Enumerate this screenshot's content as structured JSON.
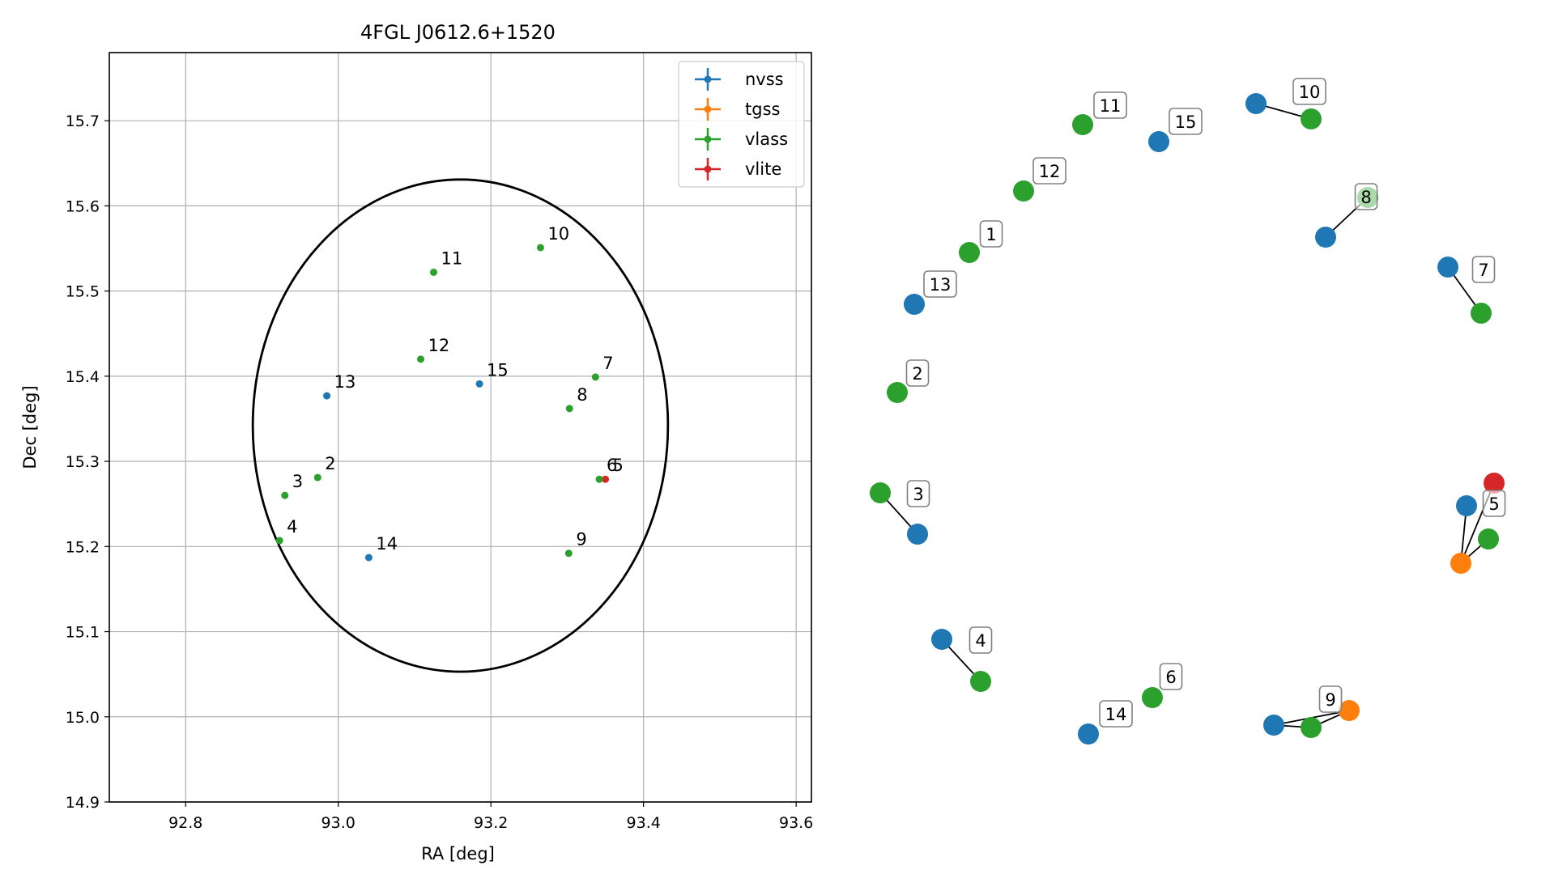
{
  "chart_data": [
    {
      "type": "scatter",
      "title": "4FGL J0612.6+1520",
      "xlabel": "RA [deg]",
      "ylabel": "Dec [deg]",
      "xlim": [
        92.7,
        93.62
      ],
      "ylim": [
        14.9,
        15.78
      ],
      "xticks": [
        92.8,
        93.0,
        93.2,
        93.4,
        93.6
      ],
      "xtick_labels": [
        "92.8",
        "93.0",
        "93.2",
        "93.4",
        "93.6"
      ],
      "yticks": [
        14.9,
        15.0,
        15.1,
        15.2,
        15.3,
        15.4,
        15.5,
        15.6,
        15.7
      ],
      "ytick_labels": [
        "14.9",
        "15.0",
        "15.1",
        "15.2",
        "15.3",
        "15.4",
        "15.5",
        "15.6",
        "15.7"
      ],
      "grid": true,
      "legend_position": "top-right",
      "legend": [
        {
          "name": "nvss",
          "color": "#1f77b4"
        },
        {
          "name": "tgss",
          "color": "#ff7f0e"
        },
        {
          "name": "vlass",
          "color": "#2ca02c"
        },
        {
          "name": "vlite",
          "color": "#d62728"
        }
      ],
      "ellipse": {
        "center": [
          93.16,
          15.342
        ],
        "semi_axis_ra": 0.272,
        "semi_axis_dec": 0.289
      },
      "points": [
        {
          "label": "2",
          "survey": "vlass",
          "ra": 92.973,
          "dec": 15.281
        },
        {
          "label": "3",
          "survey": "vlass",
          "ra": 92.93,
          "dec": 15.26
        },
        {
          "label": "4",
          "survey": "vlass",
          "ra": 92.923,
          "dec": 15.207
        },
        {
          "label": "5",
          "survey": "vlite",
          "ra": 93.35,
          "dec": 15.279
        },
        {
          "label": "6",
          "survey": "vlass",
          "ra": 93.342,
          "dec": 15.279
        },
        {
          "label": "7",
          "survey": "vlass",
          "ra": 93.337,
          "dec": 15.399
        },
        {
          "label": "8",
          "survey": "vlass",
          "ra": 93.303,
          "dec": 15.362
        },
        {
          "label": "9",
          "survey": "vlass",
          "ra": 93.302,
          "dec": 15.192
        },
        {
          "label": "10",
          "survey": "vlass",
          "ra": 93.265,
          "dec": 15.551
        },
        {
          "label": "11",
          "survey": "vlass",
          "ra": 93.125,
          "dec": 15.522
        },
        {
          "label": "12",
          "survey": "vlass",
          "ra": 93.108,
          "dec": 15.42
        },
        {
          "label": "13",
          "survey": "nvss",
          "ra": 92.985,
          "dec": 15.377
        },
        {
          "label": "14",
          "survey": "nvss",
          "ra": 93.04,
          "dec": 15.187
        },
        {
          "label": "15",
          "survey": "nvss",
          "ra": 93.185,
          "dec": 15.391
        }
      ]
    },
    {
      "type": "network",
      "nodes": [
        {
          "id": "n1",
          "color": "#2ca02c"
        },
        {
          "id": "n2",
          "color": "#2ca02c"
        },
        {
          "id": "n3a",
          "color": "#2ca02c"
        },
        {
          "id": "n3b",
          "color": "#1f77b4"
        },
        {
          "id": "n4a",
          "color": "#1f77b4"
        },
        {
          "id": "n4b",
          "color": "#2ca02c"
        },
        {
          "id": "n5a",
          "color": "#d62728"
        },
        {
          "id": "n5b",
          "color": "#1f77b4"
        },
        {
          "id": "n5c",
          "color": "#2ca02c"
        },
        {
          "id": "n5d",
          "color": "#ff7f0e"
        },
        {
          "id": "n6",
          "color": "#2ca02c"
        },
        {
          "id": "n7a",
          "color": "#1f77b4"
        },
        {
          "id": "n7b",
          "color": "#2ca02c"
        },
        {
          "id": "n8a",
          "color": "#2ca02c"
        },
        {
          "id": "n8b",
          "color": "#1f77b4"
        },
        {
          "id": "n9a",
          "color": "#1f77b4"
        },
        {
          "id": "n9b",
          "color": "#2ca02c"
        },
        {
          "id": "n9c",
          "color": "#ff7f0e"
        },
        {
          "id": "n10a",
          "color": "#1f77b4"
        },
        {
          "id": "n10b",
          "color": "#2ca02c"
        },
        {
          "id": "n11",
          "color": "#2ca02c"
        },
        {
          "id": "n12",
          "color": "#2ca02c"
        },
        {
          "id": "n13",
          "color": "#1f77b4"
        },
        {
          "id": "n14",
          "color": "#1f77b4"
        },
        {
          "id": "n15",
          "color": "#1f77b4"
        }
      ],
      "edges": [
        [
          "n3a",
          "n3b"
        ],
        [
          "n4a",
          "n4b"
        ],
        [
          "n7a",
          "n7b"
        ],
        [
          "n8a",
          "n8b"
        ],
        [
          "n10a",
          "n10b"
        ],
        [
          "n9a",
          "n9b"
        ],
        [
          "n9a",
          "n9c"
        ],
        [
          "n9b",
          "n9c"
        ],
        [
          "n5d",
          "n5a"
        ],
        [
          "n5d",
          "n5b"
        ],
        [
          "n5d",
          "n5c"
        ]
      ],
      "labels": [
        "1",
        "2",
        "3",
        "4",
        "5",
        "6",
        "7",
        "8",
        "9",
        "10",
        "11",
        "12",
        "13",
        "14",
        "15"
      ]
    }
  ]
}
